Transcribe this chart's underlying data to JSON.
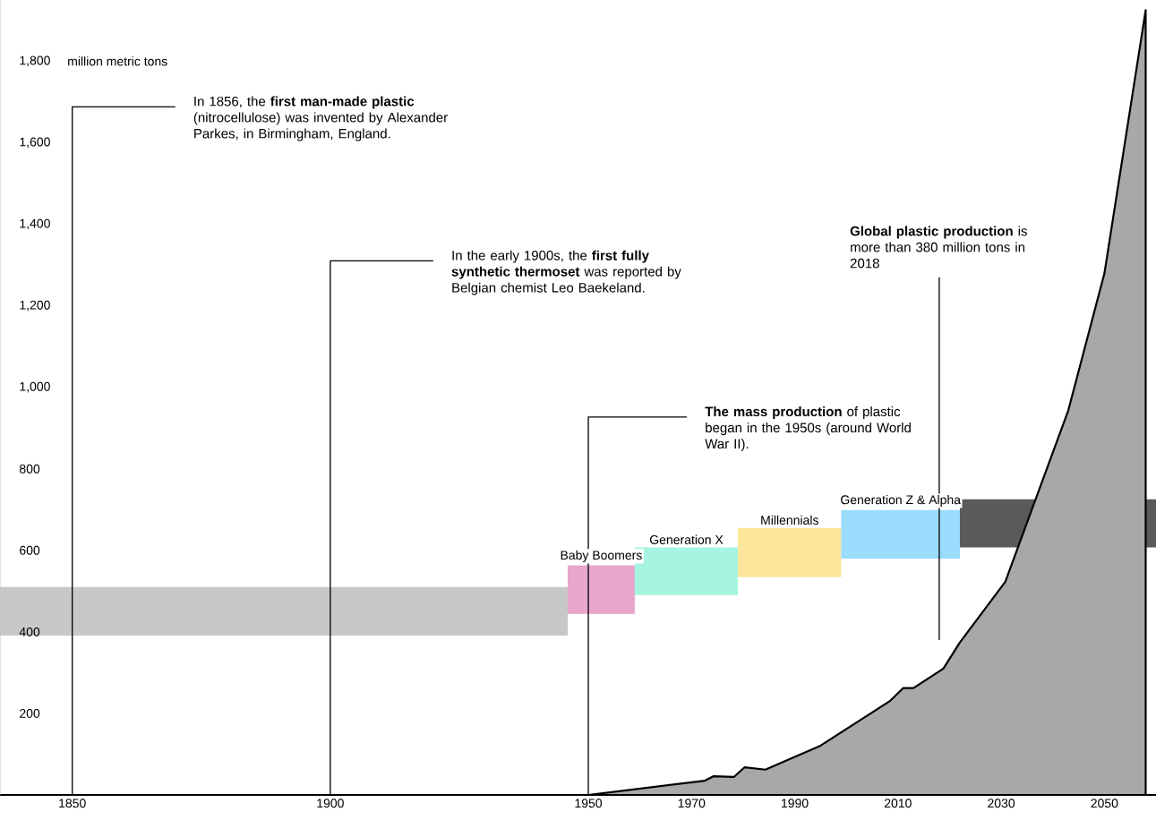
{
  "chart_data": {
    "type": "area",
    "ylabel": "million metric tons",
    "xlim": [
      1836,
      2060
    ],
    "xticks": [
      1850,
      1900,
      1950,
      1970,
      1990,
      2010,
      2030,
      2050
    ],
    "ylim": [
      0,
      1950
    ],
    "yticks": [
      200,
      400,
      600,
      800,
      {
        "value": 1000,
        "label": "1,000"
      },
      {
        "value": 1200,
        "label": "1,200"
      },
      {
        "value": 1400,
        "label": "1,400"
      },
      {
        "value": 1600,
        "label": "1,600"
      },
      {
        "value": 1800,
        "label": "1,800"
      }
    ],
    "series": [
      {
        "color": "#a8a8a8",
        "x": [
          1950,
          1972.6,
          1974.3,
          1978.2,
          1980.3,
          1984.3,
          1995,
          2008.5,
          2011,
          2013,
          2018.8,
          2022,
          2030.8,
          2043,
          2050,
          2058
        ],
        "values": [
          0,
          35,
          46,
          44,
          68,
          62,
          121,
          231,
          262,
          262,
          310,
          374,
          523,
          943,
          1279,
          1925
        ]
      }
    ],
    "bands": [
      {
        "axis": "x",
        "from": 1836,
        "to": 1946,
        "color": "#c8c8c8"
      },
      {
        "axis": "x",
        "from": 1946,
        "to": 1959,
        "label": "Baby Boomers",
        "color": "#e8a6cc"
      },
      {
        "axis": "x",
        "from": 1959,
        "to": 1979,
        "label": "Generation X",
        "color": "#a6f5e0"
      },
      {
        "axis": "x",
        "from": 1979,
        "to": 1999,
        "label": "Millennials",
        "color": "#fde59a"
      },
      {
        "axis": "x",
        "from": 1999,
        "to": 2022,
        "label": "Generation Z & Alpha",
        "color": "#99dcfb"
      },
      {
        "axis": "x",
        "from": 2022,
        "to": 2060,
        "color": "#5a5a5a"
      }
    ],
    "ref_lines": [
      {
        "axis": "x",
        "value": 1850,
        "label": "In 1856, the **first man-made plastic** (nitrocellulose) was invented by Alexander Parkes, in Birmingham, England."
      },
      {
        "axis": "x",
        "value": 1900,
        "label": "In the early 1900s, the **first fully synthetic thermoset** was reported by Belgian chemist Leo Baekeland."
      },
      {
        "axis": "x",
        "value": 1950,
        "label": "**The mass production** of plastic began in the 1950s (around World War II)."
      },
      {
        "axis": "x",
        "value": 2018,
        "label": "**Global plastic production** is more than 380 million tons in 2018"
      }
    ]
  }
}
